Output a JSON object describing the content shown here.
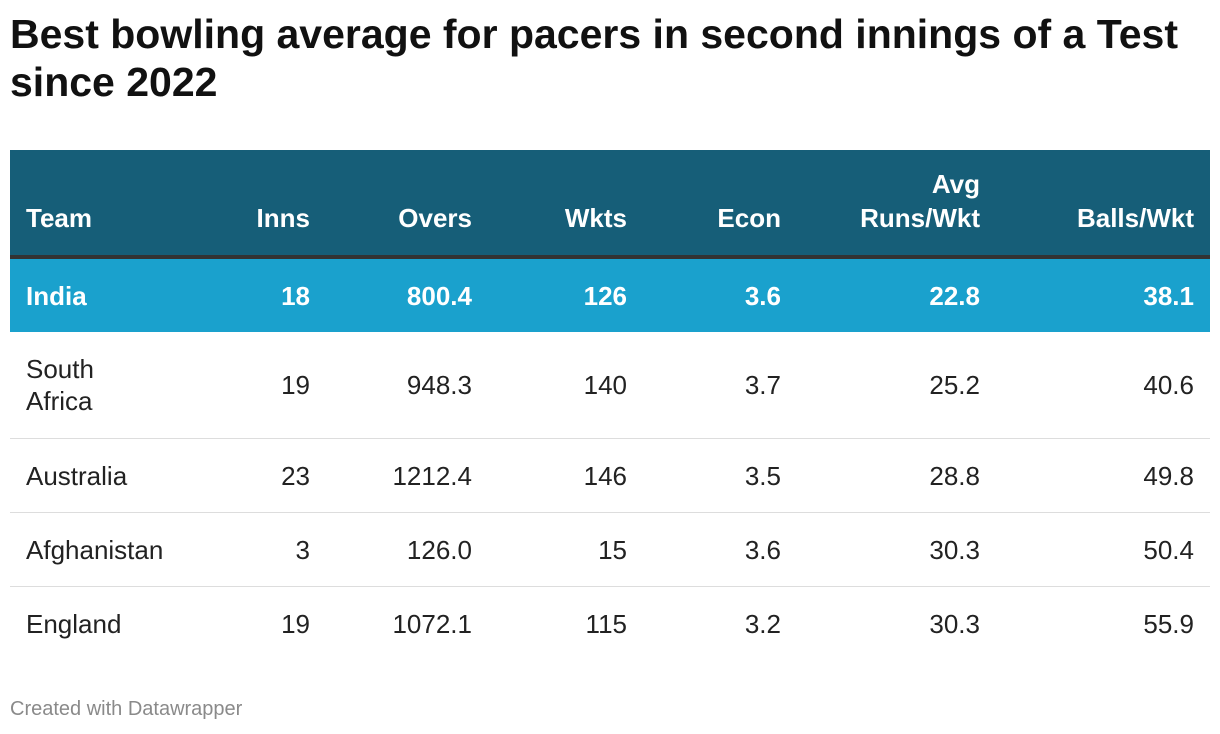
{
  "title": "Best bowling average for pacers in second innings of a Test since 2022",
  "chart_data": {
    "type": "table",
    "columns": [
      "Team",
      "Inns",
      "Overs",
      "Wkts",
      "Econ",
      "Avg\nRuns/Wkt",
      "Balls/Wkt"
    ],
    "rows": [
      [
        "India",
        "18",
        "800.4",
        "126",
        "3.6",
        "22.8",
        "38.1"
      ],
      [
        "South Africa",
        "19",
        "948.3",
        "140",
        "3.7",
        "25.2",
        "40.6"
      ],
      [
        "Australia",
        "23",
        "1212.4",
        "146",
        "3.5",
        "28.8",
        "49.8"
      ],
      [
        "Afghanistan",
        "3",
        "126.0",
        "15",
        "3.6",
        "30.3",
        "50.4"
      ],
      [
        "England",
        "19",
        "1072.1",
        "115",
        "3.2",
        "30.3",
        "55.9"
      ]
    ],
    "highlighted_row": "India"
  },
  "colors": {
    "header_background": "#165e78",
    "highlight_background": "#1aa1cd"
  },
  "footer": "Created with Datawrapper"
}
